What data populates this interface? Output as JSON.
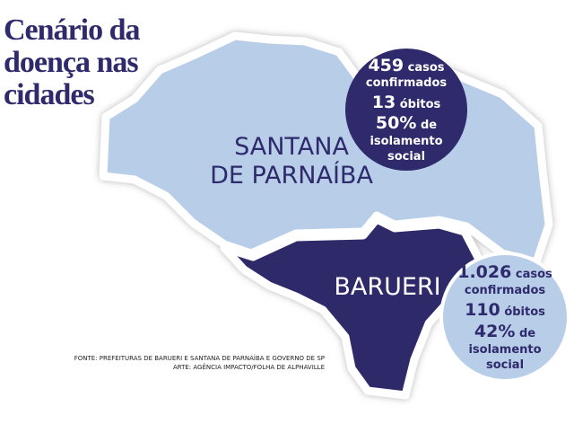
{
  "title_lines": [
    "Cenário da",
    "doença nas",
    "cidades"
  ],
  "regions": [
    {
      "name_lines": [
        "SANTANA",
        "DE PARNAÍBA"
      ],
      "stats": [
        {
          "value": "459",
          "label_lines": [
            "casos",
            "confirmados"
          ]
        },
        {
          "value": "13",
          "label_lines": [
            "óbitos"
          ]
        },
        {
          "value": "50%",
          "label_lines": [
            "de",
            "isolamento",
            "social"
          ]
        }
      ]
    },
    {
      "name_lines": [
        "BARUERI"
      ],
      "stats": [
        {
          "value": "1.026",
          "label_lines": [
            "casos",
            "confirmados"
          ]
        },
        {
          "value": "110",
          "label_lines": [
            "óbitos"
          ]
        },
        {
          "value": "42%",
          "label_lines": [
            "de",
            "isolamento",
            "social"
          ]
        }
      ]
    }
  ],
  "source_lines": [
    "FONTE: PREFEITURAS DE BARUERI E SANTANA DE PARNAÍBA E GOVERNO DE SP",
    "ARTE: AGÊNCIA IMPACTO/FOLHA DE ALPHAVILLE"
  ]
}
